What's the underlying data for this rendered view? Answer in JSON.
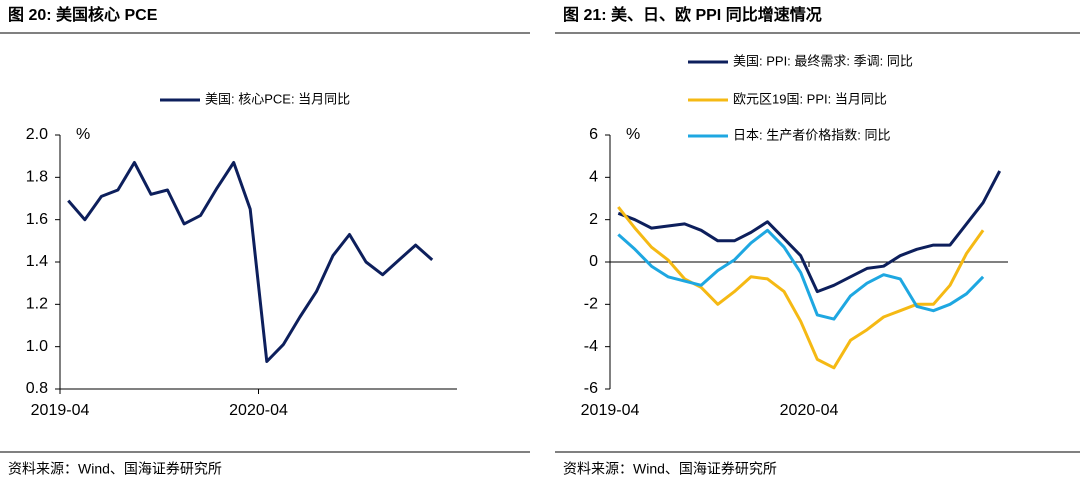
{
  "chart_data": [
    {
      "type": "line",
      "title": "图 20:    美国核心 PCE",
      "unit": "%",
      "source": "资料来源：Wind、国海证券研究所",
      "categories": [
        "2019-04",
        null,
        null,
        null,
        null,
        null,
        null,
        null,
        null,
        null,
        null,
        null,
        "2020-04",
        null,
        null,
        null,
        null,
        null,
        null,
        null,
        null,
        null,
        null,
        null
      ],
      "series": [
        {
          "name": "美国: 核心PCE: 当月同比",
          "color": "#0d1f5c",
          "values": [
            1.69,
            1.6,
            1.71,
            1.74,
            1.87,
            1.72,
            1.74,
            1.58,
            1.62,
            1.75,
            1.87,
            1.65,
            0.93,
            1.01,
            1.14,
            1.26,
            1.43,
            1.53,
            1.4,
            1.34,
            1.41,
            1.48,
            1.41,
            null
          ]
        }
      ],
      "ylim": [
        0.8,
        2.0
      ],
      "yticks": [
        {
          "value": 0.8,
          "label": "0.8"
        },
        {
          "value": 1.0,
          "label": "1.0"
        },
        {
          "value": 1.2,
          "label": "1.2"
        },
        {
          "value": 1.4,
          "label": "1.4"
        },
        {
          "value": 1.6,
          "label": "1.6"
        },
        {
          "value": 1.8,
          "label": "1.8"
        },
        {
          "value": 2.0,
          "label": "2.0"
        }
      ]
    },
    {
      "type": "line",
      "title": "图 21:  美、日、欧 PPI 同比增速情况",
      "unit": "%",
      "source": "资料来源：Wind、国海证券研究所",
      "categories": [
        "2019-04",
        null,
        null,
        null,
        null,
        null,
        null,
        null,
        null,
        null,
        null,
        null,
        "2020-04",
        null,
        null,
        null,
        null,
        null,
        null,
        null,
        null,
        null,
        null,
        null
      ],
      "series": [
        {
          "name": "美国: PPI: 最终需求: 季调: 同比",
          "color": "#0d1f5c",
          "values": [
            2.3,
            2.0,
            1.6,
            1.7,
            1.8,
            1.5,
            1.0,
            1.0,
            1.4,
            1.9,
            1.1,
            0.3,
            -1.4,
            -1.1,
            -0.7,
            -0.3,
            -0.2,
            0.3,
            0.6,
            0.8,
            0.8,
            1.8,
            2.8,
            4.3
          ]
        },
        {
          "name": "欧元区19国: PPI: 当月同比",
          "color": "#f5b914",
          "values": [
            2.6,
            1.6,
            0.7,
            0.1,
            -0.8,
            -1.2,
            -2.0,
            -1.4,
            -0.7,
            -0.8,
            -1.4,
            -2.8,
            -4.6,
            -5.0,
            -3.7,
            -3.2,
            -2.6,
            -2.3,
            -2.0,
            -2.0,
            -1.1,
            0.4,
            1.5,
            null
          ]
        },
        {
          "name": "日本: 生产者价格指数: 同比",
          "color": "#1ea7e1",
          "values": [
            1.3,
            0.6,
            -0.2,
            -0.7,
            -0.9,
            -1.1,
            -0.4,
            0.1,
            0.9,
            1.5,
            0.7,
            -0.5,
            -2.5,
            -2.7,
            -1.6,
            -1.0,
            -0.6,
            -0.8,
            -2.1,
            -2.3,
            -2.0,
            -1.5,
            -0.7,
            null
          ]
        }
      ],
      "ylim": [
        -6,
        6
      ],
      "yticks": [
        -6,
        -4,
        -2,
        0,
        2,
        4,
        6
      ]
    }
  ]
}
